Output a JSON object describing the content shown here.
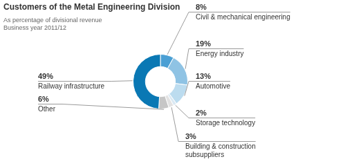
{
  "chart_data": {
    "type": "doughnut",
    "title": "Customers of the Metal Engineering Division",
    "subtitle": [
      "As percentage of divisional revenue",
      "Business year 2011/12"
    ],
    "categories": [
      "Civil & mechanical engineering",
      "Energy industry",
      "Automotive",
      "Storage technology",
      "Building & construction subsuppliers",
      "Other",
      "Railway infrastructure"
    ],
    "values": [
      8,
      19,
      13,
      2,
      3,
      6,
      49
    ],
    "value_labels": [
      "8%",
      "19%",
      "13%",
      "2%",
      "3%",
      "6%",
      "49%"
    ],
    "colors": [
      "#4a9fd4",
      "#8fc3e4",
      "#bcdcef",
      "#dbe9f3",
      "#e2e2e2",
      "#c6c6c6",
      "#0a78b4"
    ],
    "data_labels": true
  }
}
